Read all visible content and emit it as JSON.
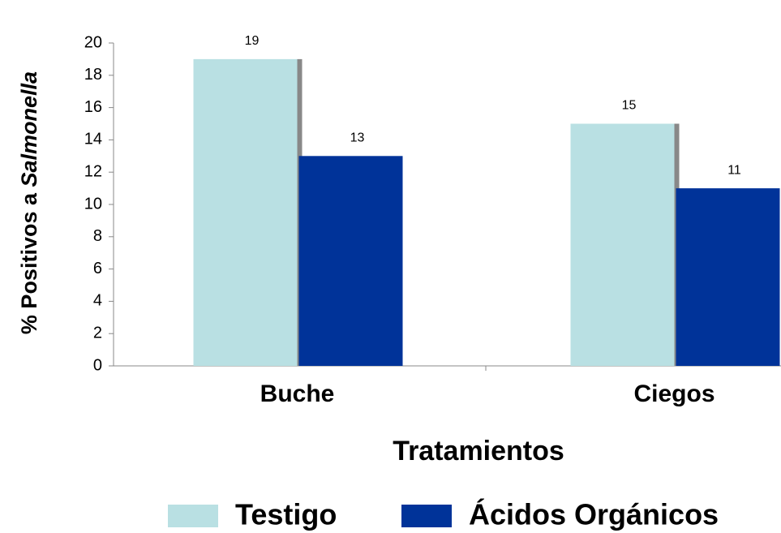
{
  "chart_data": {
    "type": "bar",
    "y_label": [
      "% Positivos a",
      "Salmonella"
    ],
    "x_label": "Tratamientos",
    "categories": [
      "Buche",
      "Ciegos"
    ],
    "series": [
      {
        "name": "Testigo",
        "color": "#b9e0e3",
        "values": [
          19,
          15
        ]
      },
      {
        "name": "Ácidos Orgánicos",
        "color": "#003399",
        "values": [
          13,
          11
        ]
      }
    ],
    "ylim": [
      0,
      20
    ],
    "yticks": [
      0,
      2,
      4,
      6,
      8,
      10,
      12,
      14,
      16,
      18,
      20
    ],
    "legend": "bottom"
  }
}
